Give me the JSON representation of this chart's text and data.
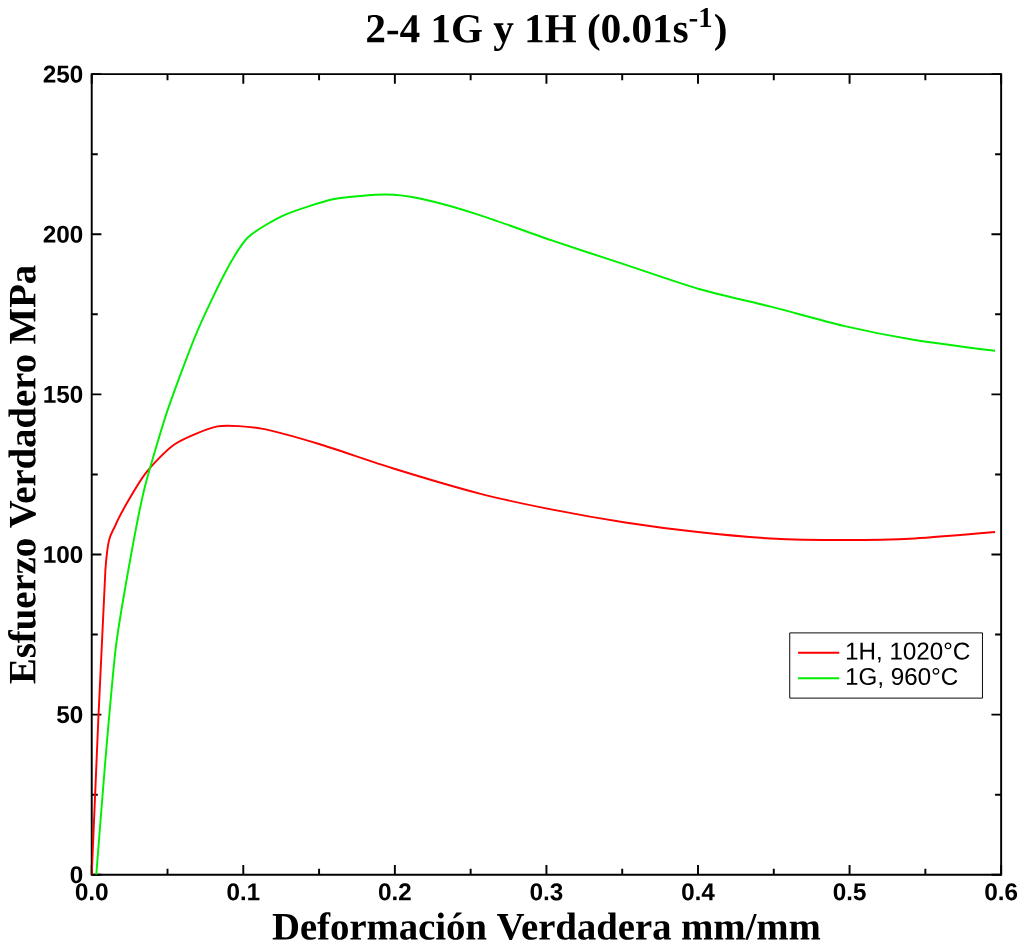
{
  "chart_data": {
    "type": "line",
    "title": "2-4 1G y 1H (0.01s$^{-1}$)",
    "xlabel": "Deformación Verdadera mm/mm",
    "ylabel": "Esfuerzo Verdadero MPa",
    "xlim": [
      0,
      0.6
    ],
    "ylim": [
      0,
      250
    ],
    "xticks": [
      {
        "value": 0,
        "label": "0.0"
      },
      0.1,
      0.2,
      0.3,
      0.4,
      0.5,
      0.6
    ],
    "yticks": [
      0,
      50,
      100,
      150,
      200,
      250
    ],
    "legend": "bottom right",
    "grid": false,
    "marker": "none",
    "line_style": "solid",
    "series": [
      {
        "name": "1H, 1020°C",
        "color": "#ff0000",
        "x": [
          0,
          0.009,
          0.016,
          0.035,
          0.055,
          0.083,
          0.112,
          0.15,
          0.198,
          0.256,
          0.304,
          0.352,
          0.4,
          0.448,
          0.496,
          0.543,
          0.596
        ],
        "values": [
          0,
          95,
          109.5,
          125,
          134.5,
          140,
          139.3,
          134.5,
          127,
          119,
          114,
          110,
          107,
          105,
          104.5,
          105,
          107
        ]
      },
      {
        "name": "1G, 960°C",
        "color": "#00ee00",
        "x": [
          0.003,
          0.009,
          0.016,
          0.026,
          0.035,
          0.05,
          0.069,
          0.088,
          0.103,
          0.127,
          0.16,
          0.194,
          0.218,
          0.256,
          0.304,
          0.352,
          0.4,
          0.448,
          0.496,
          0.543,
          0.596
        ],
        "values": [
          0,
          35.7,
          71.4,
          100,
          121,
          145,
          169,
          188,
          199,
          206,
          211,
          212.4,
          211,
          206,
          198,
          190.5,
          183,
          177.4,
          171.4,
          167,
          163.6
        ]
      }
    ]
  }
}
